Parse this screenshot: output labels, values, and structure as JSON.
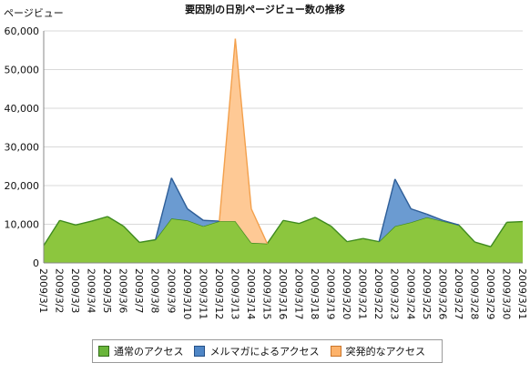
{
  "chart_data": {
    "type": "area",
    "title": "要因別の日別ページビュー数の推移",
    "ylabel": "ページビュー",
    "xlabel": "",
    "ylim": [
      0,
      60000
    ],
    "yticks": [
      0,
      10000,
      20000,
      30000,
      40000,
      50000,
      60000
    ],
    "ytick_labels": [
      "0",
      "10,000",
      "20,000",
      "30,000",
      "40,000",
      "50,000",
      "60,000"
    ],
    "grid": true,
    "legend_position": "bottom",
    "stacked": true,
    "categories": [
      "2009/3/1",
      "2009/3/2",
      "2009/3/3",
      "2009/3/4",
      "2009/3/5",
      "2009/3/6",
      "2009/3/7",
      "2009/3/8",
      "2009/3/9",
      "2009/3/10",
      "2009/3/11",
      "2009/3/12",
      "2009/3/13",
      "2009/3/14",
      "2009/3/15",
      "2009/3/16",
      "2009/3/17",
      "2009/3/18",
      "2009/3/19",
      "2009/3/20",
      "2009/3/21",
      "2009/3/22",
      "2009/3/23",
      "2009/3/24",
      "2009/3/25",
      "2009/3/26",
      "2009/3/27",
      "2009/3/28",
      "2009/3/29",
      "2009/3/30",
      "2009/3/31"
    ],
    "series": [
      {
        "name": "通常のアクセス",
        "color": "#8cc63e",
        "stroke": "#3e8a1e",
        "values": [
          4500,
          11000,
          9800,
          10800,
          12000,
          9500,
          5300,
          6000,
          11500,
          11000,
          9500,
          10800,
          10800,
          5200,
          5000,
          11000,
          10200,
          11800,
          9500,
          5500,
          6300,
          5500,
          9500,
          10500,
          11800,
          10800,
          9800,
          5400,
          4200,
          10500,
          10700
        ]
      },
      {
        "name": "メルマガによるアクセス",
        "color": "#6b9bd1",
        "stroke": "#2e5e98",
        "values": [
          0,
          0,
          0,
          0,
          0,
          0,
          0,
          0,
          10500,
          3000,
          1500,
          0,
          0,
          0,
          0,
          0,
          0,
          0,
          0,
          0,
          0,
          0,
          12200,
          3500,
          800,
          200,
          0,
          0,
          0,
          0,
          0
        ]
      },
      {
        "name": "突発的なアクセス",
        "color": "#fec995",
        "stroke": "#f3a04c",
        "values": [
          0,
          0,
          0,
          0,
          0,
          0,
          0,
          0,
          0,
          0,
          0,
          0,
          47200,
          8800,
          0,
          0,
          0,
          0,
          0,
          0,
          0,
          0,
          0,
          0,
          0,
          0,
          0,
          0,
          0,
          0,
          0
        ]
      }
    ]
  }
}
